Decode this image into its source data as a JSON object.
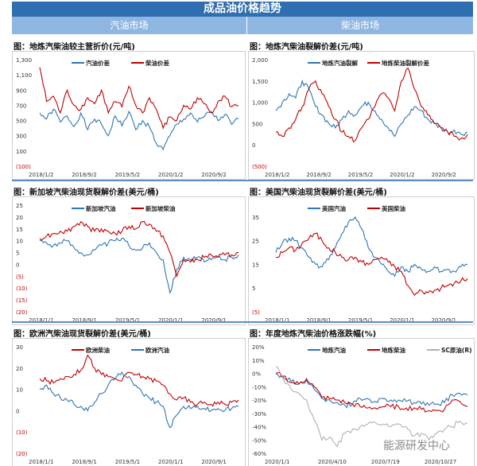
{
  "header": {
    "title": "成品油价格趋势",
    "left_section": "汽油市场",
    "right_section": "柴油市场"
  },
  "watermark": "能源研发中心",
  "colors": {
    "blue": "#2e75b6",
    "red": "#c00000",
    "gray": "#b0b0b0",
    "header": "#2f6eb0",
    "subheader": "#8fb6e0"
  },
  "chart_data": [
    {
      "type": "line",
      "title": "图：地炼汽柴油较主营折价(元/吨)",
      "ylim": [
        -100,
        1300
      ],
      "yticks": [
        "1,300",
        "1,100",
        "900",
        "700",
        "500",
        "300",
        "100",
        "(100)"
      ],
      "ytick_values": [
        1300,
        1100,
        900,
        700,
        500,
        300,
        100,
        -100
      ],
      "xticks": [
        "2018/1/2",
        "2018/9/2",
        "2019/5/2",
        "2020/1/2",
        "2020/9/2"
      ],
      "series": [
        {
          "name": "汽油价差",
          "color": "#2e75b6",
          "values": [
            600,
            520,
            650,
            480,
            560,
            420,
            600,
            380,
            520,
            450,
            300,
            560,
            430,
            620,
            380,
            500,
            420,
            200,
            120,
            300,
            450,
            520,
            600,
            480,
            550,
            620,
            500,
            580,
            450,
            520
          ]
        },
        {
          "name": "柴油价差",
          "color": "#c00000",
          "values": [
            1200,
            750,
            820,
            600,
            900,
            700,
            650,
            800,
            720,
            900,
            600,
            750,
            680,
            950,
            700,
            600,
            800,
            650,
            400,
            550,
            500,
            700,
            650,
            800,
            720,
            600,
            750,
            820,
            680,
            700
          ]
        }
      ]
    },
    {
      "type": "line",
      "title": "图：地炼汽柴油裂解价差(元/吨)",
      "ylim": [
        -500,
        2000
      ],
      "yticks": [
        "2,000",
        "1,500",
        "1,000",
        "500",
        "0",
        "(500)"
      ],
      "ytick_values": [
        2000,
        1500,
        1000,
        500,
        0,
        -500
      ],
      "xticks": [
        "2018/1/2",
        "2018/9/2",
        "2019/5/2",
        "2020/1/2",
        "2020/9/2"
      ],
      "series": [
        {
          "name": "地炼汽油裂解",
          "color": "#2e75b6",
          "values": [
            800,
            1000,
            1200,
            1100,
            1500,
            1300,
            900,
            700,
            500,
            400,
            600,
            800,
            700,
            900,
            1000,
            800,
            600,
            400,
            200,
            500,
            700,
            900,
            800,
            600,
            500,
            400,
            300,
            350,
            250,
            300
          ]
        },
        {
          "name": "地炼柴油裂解价差",
          "color": "#c00000",
          "values": [
            300,
            200,
            400,
            600,
            900,
            1300,
            1500,
            1200,
            900,
            600,
            300,
            200,
            100,
            400,
            600,
            900,
            1200,
            1100,
            800,
            1500,
            1800,
            1300,
            900,
            700,
            500,
            400,
            300,
            200,
            150,
            250
          ]
        }
      ]
    },
    {
      "type": "line",
      "title": "图：新加坡汽柴油现货裂解价差(美元/桶)",
      "ylim": [
        -20,
        25
      ],
      "yticks": [
        "25",
        "20",
        "15",
        "10",
        "5",
        "0",
        "(5)",
        "(10)",
        "(15)",
        "(20)"
      ],
      "ytick_values": [
        25,
        20,
        15,
        10,
        5,
        0,
        -5,
        -10,
        -15,
        -20
      ],
      "xticks": [
        "2018/1/1",
        "2018/9/1",
        "2019/5/1",
        "2020/1/1",
        "2020/9/1"
      ],
      "series": [
        {
          "name": "新加坡汽油",
          "color": "#2e75b6",
          "values": [
            10,
            9,
            8,
            9,
            10,
            7,
            5,
            4,
            6,
            8,
            9,
            10,
            11,
            8,
            6,
            7,
            9,
            5,
            2,
            -12,
            -2,
            3,
            2,
            3,
            1,
            2,
            3,
            2,
            3,
            4
          ]
        },
        {
          "name": "新加坡柴油",
          "color": "#c00000",
          "values": [
            11,
            12,
            13,
            14,
            14,
            16,
            18,
            16,
            14,
            15,
            14,
            13,
            14,
            16,
            15,
            18,
            17,
            14,
            12,
            5,
            -5,
            2,
            1,
            2,
            3,
            4,
            3,
            4,
            4,
            5
          ]
        }
      ]
    },
    {
      "type": "line",
      "title": "图：美国汽柴油现货裂解价差(美元/桶)",
      "ylim": [
        -5,
        40
      ],
      "yticks": [
        "35",
        "25",
        "15",
        "5",
        "(5)"
      ],
      "ytick_values": [
        35,
        25,
        15,
        5,
        -5
      ],
      "xticks": [
        "2018/1/1",
        "2018/9/1",
        "2019/5/1",
        "2020/1/1",
        "2020/9/1"
      ],
      "series": [
        {
          "name": "美国汽油",
          "color": "#2e75b6",
          "values": [
            20,
            24,
            26,
            25,
            22,
            18,
            15,
            14,
            17,
            22,
            28,
            33,
            35,
            30,
            22,
            18,
            15,
            12,
            10,
            14,
            12,
            15,
            13,
            12,
            14,
            12,
            13,
            12,
            14,
            15
          ]
        },
        {
          "name": "美国柴油",
          "color": "#c00000",
          "values": [
            18,
            20,
            22,
            21,
            24,
            26,
            28,
            25,
            22,
            20,
            18,
            17,
            18,
            16,
            15,
            17,
            18,
            16,
            14,
            12,
            6,
            2,
            4,
            3,
            4,
            5,
            6,
            7,
            8,
            9
          ]
        }
      ]
    },
    {
      "type": "line",
      "title": "图：欧洲汽柴油现货裂解价差(美元/桶)",
      "ylim": [
        -20,
        30
      ],
      "yticks": [
        "30",
        "20",
        "10",
        "0",
        "(10)",
        "(20)"
      ],
      "ytick_values": [
        30,
        20,
        10,
        0,
        -10,
        -20
      ],
      "xticks": [
        "2018/1/1",
        "2018/9/1",
        "2019/5/1",
        "2020/1/1",
        "2020/9/1"
      ],
      "series": [
        {
          "name": "欧洲柴油",
          "color": "#c00000",
          "values": [
            15,
            14,
            13,
            15,
            16,
            17,
            19,
            26,
            20,
            17,
            16,
            15,
            14,
            18,
            17,
            16,
            15,
            14,
            12,
            8,
            5,
            6,
            4,
            3,
            4,
            3,
            4,
            3,
            4,
            5
          ]
        },
        {
          "name": "欧洲汽油",
          "color": "#2e75b6",
          "values": [
            10,
            12,
            8,
            6,
            5,
            3,
            2,
            0,
            4,
            8,
            12,
            15,
            18,
            16,
            12,
            8,
            6,
            4,
            2,
            -8,
            -2,
            2,
            1,
            2,
            1,
            0,
            1,
            0,
            1,
            2
          ]
        }
      ]
    },
    {
      "type": "line",
      "title": "图：年度地炼汽柴油价格涨跌幅(%)",
      "ylim": [
        -60,
        20
      ],
      "yticks": [
        "20%",
        "10%",
        "0%",
        "-10%",
        "-20%",
        "-30%",
        "-40%",
        "-50%",
        "-60%"
      ],
      "ytick_values": [
        20,
        10,
        0,
        -10,
        -20,
        -30,
        -40,
        -50,
        -60
      ],
      "xticks": [
        "2020/1/1",
        "2020/4/10",
        "2020/7/19",
        "2020/10/27"
      ],
      "series": [
        {
          "name": "地炼汽油",
          "color": "#2e75b6",
          "values": [
            0,
            -3,
            -6,
            -8,
            -5,
            -12,
            -19,
            -20,
            -22,
            -24,
            -23,
            -19,
            -19,
            -21,
            -19,
            -20,
            -20,
            -21,
            -22,
            -23,
            -24,
            -23,
            -22,
            -16,
            -15,
            -16
          ]
        },
        {
          "name": "地炼柴油",
          "color": "#c00000",
          "values": [
            0,
            -2,
            -7,
            -8,
            -4,
            -10,
            -18,
            -19,
            -20,
            -22,
            -23,
            -25,
            -26,
            -26,
            -25,
            -25,
            -25,
            -26,
            -26,
            -27,
            -28,
            -28,
            -27,
            -20,
            -21,
            -25
          ]
        },
        {
          "name": "SC原油(R)",
          "color": "#b0b0b0",
          "values": [
            5,
            -5,
            -12,
            -15,
            -20,
            -35,
            -50,
            -48,
            -55,
            -45,
            -42,
            -40,
            -38,
            -37,
            -38,
            -40,
            -38,
            -40,
            -47,
            -45,
            -50,
            -45,
            -42,
            -40,
            -36,
            -37
          ]
        }
      ]
    }
  ]
}
